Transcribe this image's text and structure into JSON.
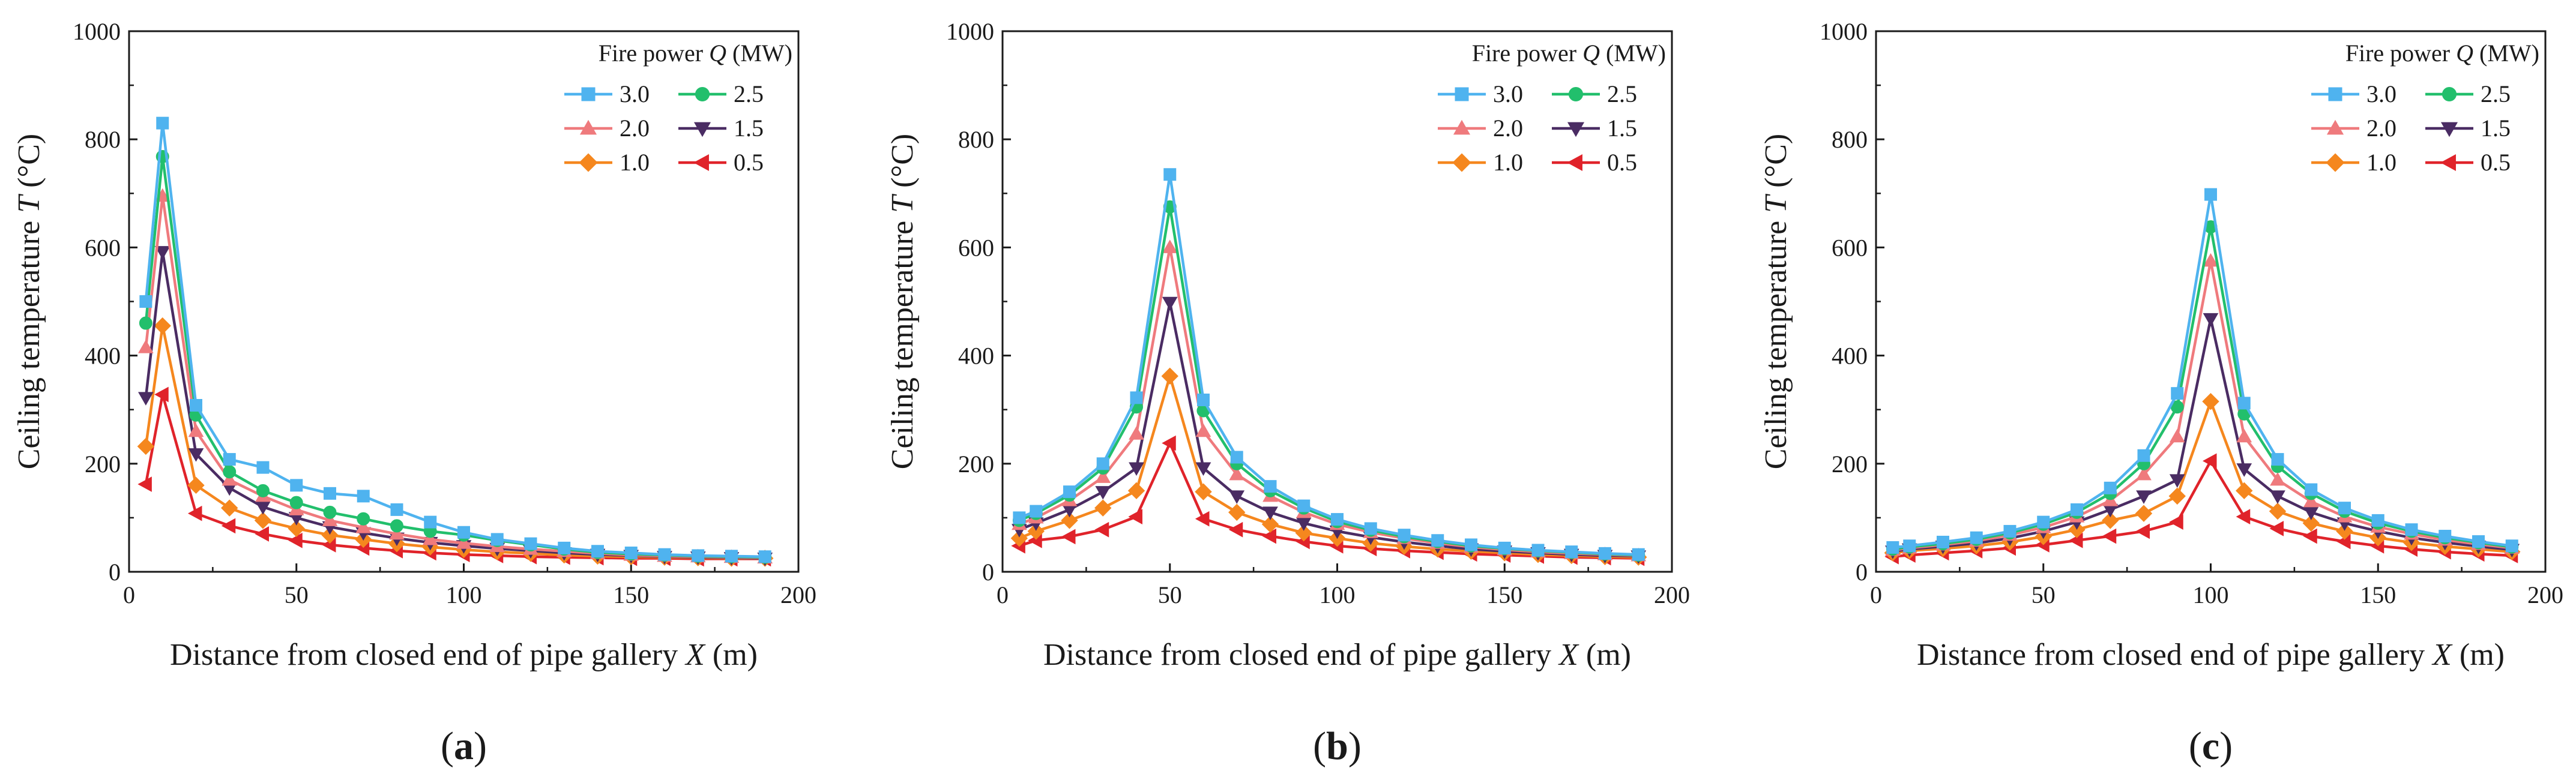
{
  "colors": {
    "3.0": "#4fb3ef",
    "2.5": "#22bf6c",
    "2.0": "#ef7a7d",
    "1.5": "#4a2c63",
    "1.0": "#f5871e",
    "0.5": "#e0232a"
  },
  "legend_title": {
    "prefix": "Fire power ",
    "symbol": "Q",
    "unit": " (MW)"
  },
  "chart_data": [
    {
      "type": "line",
      "panel": "a",
      "panel_label": {
        "open": "(",
        "letter": "a",
        "close": ")"
      },
      "xlabel": {
        "text": "Distance from closed end of pipe gallery ",
        "symbol": "X",
        "unit": " (m)"
      },
      "ylabel": {
        "text": "Ceiling temperature ",
        "symbol": "T",
        "unit": " (°C)"
      },
      "xlim": [
        0,
        200
      ],
      "ylim": [
        0,
        1000
      ],
      "xticks": [
        "0",
        "50",
        "100",
        "150",
        "200"
      ],
      "yticks": [
        "0",
        "200",
        "400",
        "600",
        "800",
        "1000"
      ],
      "x": [
        5,
        10,
        20,
        30,
        40,
        50,
        60,
        70,
        80,
        90,
        100,
        110,
        120,
        130,
        140,
        150,
        160,
        170,
        180,
        190
      ],
      "series": [
        {
          "name": "3.0",
          "marker": "square",
          "values": [
            500,
            830,
            308,
            208,
            193,
            160,
            145,
            140,
            115,
            92,
            73,
            60,
            52,
            44,
            38,
            35,
            32,
            30,
            29,
            28
          ]
        },
        {
          "name": "2.5",
          "marker": "circle",
          "values": [
            460,
            768,
            290,
            185,
            150,
            128,
            110,
            98,
            85,
            75,
            68,
            58,
            50,
            42,
            36,
            33,
            31,
            29,
            28,
            27
          ]
        },
        {
          "name": "2.0",
          "marker": "triangle-up",
          "values": [
            415,
            695,
            260,
            170,
            140,
            115,
            95,
            82,
            70,
            60,
            53,
            47,
            42,
            38,
            34,
            31,
            29,
            28,
            27,
            26
          ]
        },
        {
          "name": "1.5",
          "marker": "triangle-down",
          "values": [
            322,
            592,
            218,
            155,
            120,
            100,
            83,
            72,
            62,
            54,
            48,
            43,
            39,
            35,
            32,
            30,
            28,
            27,
            26,
            25
          ]
        },
        {
          "name": "1.0",
          "marker": "diamond",
          "values": [
            232,
            455,
            160,
            118,
            95,
            80,
            68,
            60,
            52,
            46,
            41,
            37,
            34,
            31,
            29,
            28,
            27,
            26,
            25,
            25
          ]
        },
        {
          "name": "0.5",
          "marker": "triangle-left",
          "values": [
            162,
            328,
            108,
            85,
            70,
            58,
            50,
            44,
            39,
            35,
            32,
            30,
            28,
            27,
            26,
            25,
            25,
            24,
            24,
            24
          ]
        }
      ]
    },
    {
      "type": "line",
      "panel": "b",
      "panel_label": {
        "open": "(",
        "letter": "b",
        "close": ")"
      },
      "xlabel": {
        "text": "Distance from closed end of pipe gallery ",
        "symbol": "X",
        "unit": " (m)"
      },
      "ylabel": {
        "text": "Ceiling temperature ",
        "symbol": "T",
        "unit": " (°C)"
      },
      "xlim": [
        0,
        200
      ],
      "ylim": [
        0,
        1000
      ],
      "xticks": [
        "0",
        "50",
        "100",
        "150",
        "200"
      ],
      "yticks": [
        "0",
        "200",
        "400",
        "600",
        "800",
        "1000"
      ],
      "x": [
        5,
        10,
        20,
        30,
        40,
        50,
        60,
        70,
        80,
        90,
        100,
        110,
        120,
        130,
        140,
        150,
        160,
        170,
        180,
        190
      ],
      "series": [
        {
          "name": "3.0",
          "marker": "square",
          "values": [
            100,
            112,
            148,
            200,
            322,
            735,
            318,
            212,
            158,
            122,
            97,
            80,
            68,
            58,
            50,
            44,
            40,
            37,
            34,
            32
          ]
        },
        {
          "name": "2.5",
          "marker": "circle",
          "values": [
            95,
            108,
            142,
            192,
            305,
            675,
            298,
            200,
            150,
            118,
            93,
            77,
            65,
            56,
            48,
            43,
            39,
            36,
            33,
            31
          ]
        },
        {
          "name": "2.0",
          "marker": "triangle-up",
          "values": [
            88,
            100,
            132,
            175,
            255,
            600,
            260,
            180,
            140,
            110,
            88,
            73,
            62,
            53,
            46,
            41,
            37,
            34,
            32,
            30
          ]
        },
        {
          "name": "1.5",
          "marker": "triangle-down",
          "values": [
            78,
            90,
            115,
            148,
            192,
            498,
            192,
            140,
            110,
            90,
            75,
            64,
            55,
            48,
            42,
            38,
            35,
            32,
            30,
            29
          ]
        },
        {
          "name": "1.0",
          "marker": "diamond",
          "values": [
            62,
            75,
            95,
            118,
            150,
            362,
            148,
            110,
            88,
            72,
            62,
            53,
            47,
            42,
            38,
            35,
            32,
            30,
            28,
            27
          ]
        },
        {
          "name": "0.5",
          "marker": "triangle-left",
          "values": [
            48,
            58,
            65,
            78,
            102,
            238,
            98,
            78,
            66,
            56,
            48,
            43,
            39,
            36,
            33,
            31,
            29,
            27,
            26,
            25
          ]
        }
      ]
    },
    {
      "type": "line",
      "panel": "c",
      "panel_label": {
        "open": "(",
        "letter": "c",
        "close": ")"
      },
      "xlabel": {
        "text": "Distance from closed end of pipe gallery ",
        "symbol": "X",
        "unit": " (m)"
      },
      "ylabel": {
        "text": "Ceiling temperature ",
        "symbol": "T",
        "unit": " (°C)"
      },
      "xlim": [
        0,
        200
      ],
      "ylim": [
        0,
        1000
      ],
      "xticks": [
        "0",
        "50",
        "100",
        "150",
        "200"
      ],
      "yticks": [
        "0",
        "200",
        "400",
        "600",
        "800",
        "1000"
      ],
      "x": [
        5,
        10,
        20,
        30,
        40,
        50,
        60,
        70,
        80,
        90,
        100,
        110,
        120,
        130,
        140,
        150,
        160,
        170,
        180,
        190
      ],
      "series": [
        {
          "name": "3.0",
          "marker": "square",
          "values": [
            45,
            48,
            55,
            63,
            75,
            92,
            115,
            155,
            215,
            330,
            698,
            312,
            208,
            152,
            118,
            95,
            78,
            66,
            56,
            48
          ]
        },
        {
          "name": "2.5",
          "marker": "circle",
          "values": [
            42,
            46,
            52,
            60,
            72,
            88,
            110,
            145,
            200,
            305,
            638,
            292,
            195,
            145,
            112,
            90,
            75,
            63,
            54,
            46
          ]
        },
        {
          "name": "2.0",
          "marker": "triangle-up",
          "values": [
            40,
            44,
            50,
            57,
            68,
            82,
            102,
            132,
            180,
            250,
            575,
            250,
            170,
            130,
            102,
            83,
            70,
            59,
            51,
            44
          ]
        },
        {
          "name": "1.5",
          "marker": "triangle-down",
          "values": [
            38,
            42,
            47,
            53,
            62,
            75,
            92,
            115,
            140,
            170,
            468,
            190,
            140,
            110,
            90,
            75,
            63,
            54,
            47,
            41
          ]
        },
        {
          "name": "1.0",
          "marker": "diamond",
          "values": [
            35,
            39,
            43,
            48,
            55,
            65,
            78,
            95,
            108,
            140,
            315,
            150,
            112,
            90,
            75,
            63,
            54,
            47,
            42,
            37
          ]
        },
        {
          "name": "0.5",
          "marker": "triangle-left",
          "values": [
            28,
            31,
            35,
            39,
            44,
            50,
            58,
            66,
            75,
            92,
            205,
            102,
            80,
            66,
            56,
            48,
            42,
            37,
            33,
            30
          ]
        }
      ]
    }
  ]
}
